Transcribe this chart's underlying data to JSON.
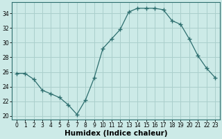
{
  "x": [
    0,
    1,
    2,
    3,
    4,
    5,
    6,
    7,
    8,
    9,
    10,
    11,
    12,
    13,
    14,
    15,
    16,
    17,
    18,
    19,
    20,
    21,
    22,
    23
  ],
  "y": [
    25.8,
    25.8,
    25.0,
    23.5,
    23.0,
    22.5,
    21.5,
    20.2,
    22.2,
    25.2,
    29.2,
    30.5,
    31.8,
    34.2,
    34.7,
    34.7,
    34.7,
    34.5,
    33.0,
    32.5,
    30.5,
    28.2,
    26.5,
    25.2
  ],
  "line_color": "#2d6e6e",
  "marker": "D",
  "marker_size": 2.2,
  "bg_color": "#cceae7",
  "grid_color": "#aacfcc",
  "xlabel": "Humidex (Indice chaleur)",
  "xlim": [
    -0.5,
    23.5
  ],
  "ylim": [
    19.5,
    35.5
  ],
  "yticks": [
    20,
    22,
    24,
    26,
    28,
    30,
    32,
    34
  ],
  "xticks": [
    0,
    1,
    2,
    3,
    4,
    5,
    6,
    7,
    8,
    9,
    10,
    11,
    12,
    13,
    14,
    15,
    16,
    17,
    18,
    19,
    20,
    21,
    22,
    23
  ],
  "tick_fontsize": 5.5,
  "xlabel_fontsize": 7.5
}
